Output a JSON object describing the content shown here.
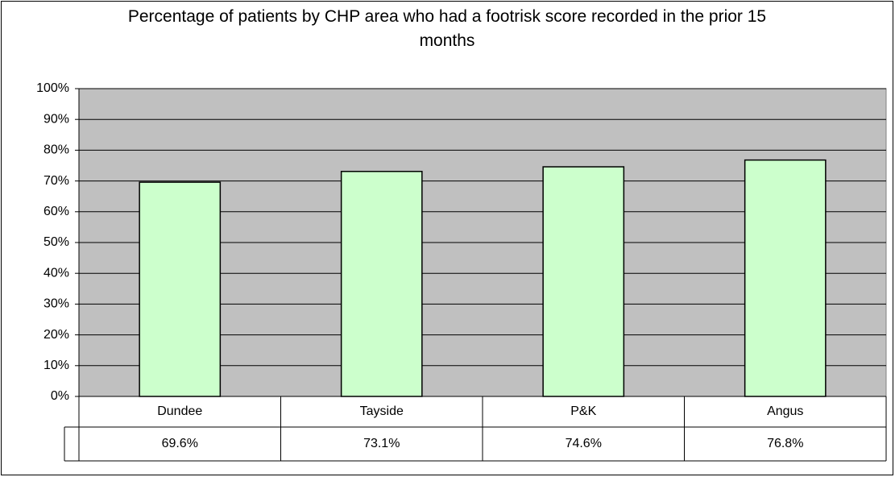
{
  "chart_data": {
    "type": "bar",
    "title": "Percentage of patients by CHP area who had a footrisk score recorded in the prior 15 months",
    "categories": [
      "Dundee",
      "Tayside",
      "P&K",
      "Angus"
    ],
    "values": [
      69.6,
      73.1,
      74.6,
      76.8
    ],
    "value_labels": [
      "69.6%",
      "73.1%",
      "74.6%",
      "76.8%"
    ],
    "color": "#ccffcc",
    "ylim": [
      0,
      100
    ],
    "yticks": [
      {
        "value": 0,
        "label": "0%"
      },
      {
        "value": 10,
        "label": "10%"
      },
      {
        "value": 20,
        "label": "20%"
      },
      {
        "value": 30,
        "label": "30%"
      },
      {
        "value": 40,
        "label": "40%"
      },
      {
        "value": 50,
        "label": "50%"
      },
      {
        "value": 60,
        "label": "60%"
      },
      {
        "value": 70,
        "label": "70%"
      },
      {
        "value": 80,
        "label": "80%"
      },
      {
        "value": 90,
        "label": "90%"
      },
      {
        "value": 100,
        "label": "100%"
      }
    ],
    "grid": true,
    "plot_background": "#c0c0c0"
  }
}
